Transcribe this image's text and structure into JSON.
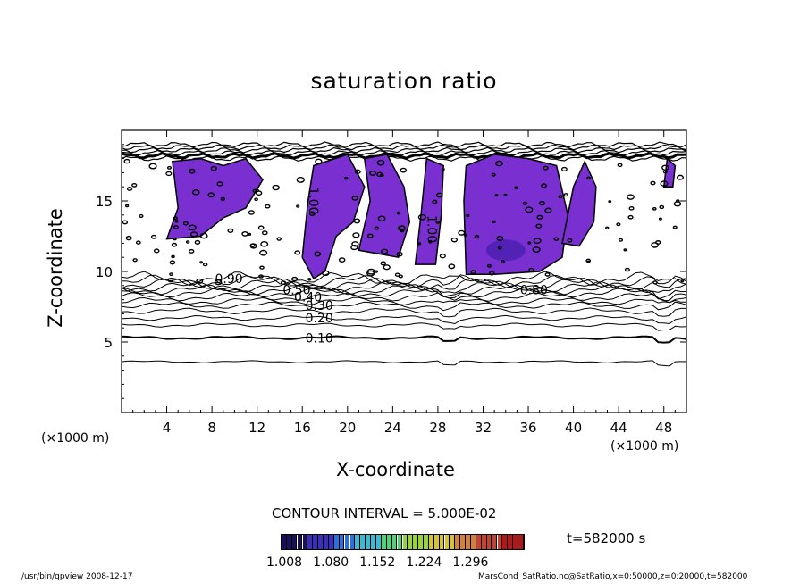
{
  "chart_data": {
    "type": "contour",
    "title": "saturation ratio",
    "xlabel": "X-coordinate",
    "ylabel": "Z-coordinate",
    "x_unit_left": "(×1000 m)",
    "x_unit_right": "(×1000 m)",
    "xlim": [
      0,
      50
    ],
    "ylim": [
      0,
      20
    ],
    "x_ticks": [
      4,
      8,
      12,
      16,
      20,
      24,
      28,
      32,
      36,
      40,
      44,
      48
    ],
    "y_ticks": [
      5,
      10,
      15
    ],
    "contour_labels": [
      {
        "text": "0.10",
        "x": 17.5,
        "z": 5.3
      },
      {
        "text": "0.20",
        "x": 17.5,
        "z": 6.7
      },
      {
        "text": "0.30",
        "x": 17.5,
        "z": 7.6
      },
      {
        "text": "0.40",
        "x": 16.5,
        "z": 8.2
      },
      {
        "text": "0.50",
        "x": 15.5,
        "z": 8.7
      },
      {
        "text": "0.90",
        "x": 9.5,
        "z": 9.5
      },
      {
        "text": "0.80",
        "x": 36.5,
        "z": 8.7
      },
      {
        "text": "1.00",
        "x": 27.5,
        "z": 13.0
      },
      {
        "text": "1.00",
        "x": 17.0,
        "z": 15.0
      }
    ],
    "contour_interval": "CONTOUR INTERVAL = 5.000E-02",
    "time_label": "t=582000 s",
    "colorbar": {
      "ticks": [
        "1.008",
        "1.080",
        "1.152",
        "1.224",
        "1.296"
      ],
      "colors": [
        "#1a0f5a",
        "#3b2fb8",
        "#2f6fd6",
        "#3fb8d0",
        "#4fd27a",
        "#9ad23f",
        "#d2c23f",
        "#d2803f",
        "#c8402f",
        "#b01818"
      ]
    },
    "shaded_color": "#7a2fd0",
    "footer_left": "/usr/bin/gpview   2008-12-17",
    "footer_right": "MarsCond_SatRatio.nc@SatRatio,x=0:50000,z=0:20000,t=582000"
  }
}
